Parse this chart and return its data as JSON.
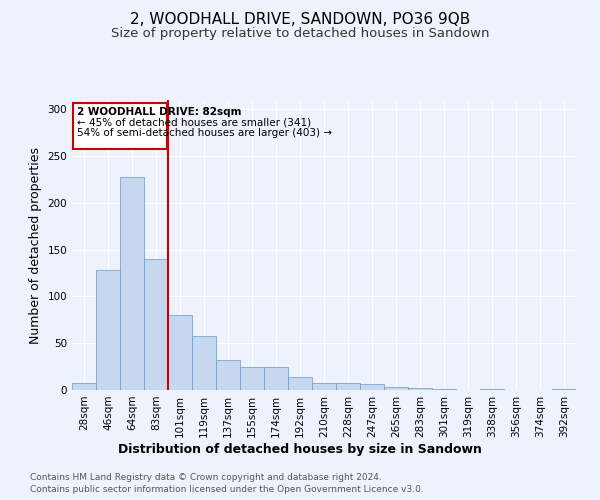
{
  "title": "2, WOODHALL DRIVE, SANDOWN, PO36 9QB",
  "subtitle": "Size of property relative to detached houses in Sandown",
  "xlabel": "Distribution of detached houses by size in Sandown",
  "ylabel": "Number of detached properties",
  "bar_labels": [
    "28sqm",
    "46sqm",
    "64sqm",
    "83sqm",
    "101sqm",
    "119sqm",
    "137sqm",
    "155sqm",
    "174sqm",
    "192sqm",
    "210sqm",
    "228sqm",
    "247sqm",
    "265sqm",
    "283sqm",
    "301sqm",
    "319sqm",
    "338sqm",
    "356sqm",
    "374sqm",
    "392sqm"
  ],
  "bar_values": [
    7,
    128,
    228,
    140,
    80,
    58,
    32,
    25,
    25,
    14,
    8,
    8,
    6,
    3,
    2,
    1,
    0,
    1,
    0,
    0,
    1
  ],
  "bar_color": "#c5d8f0",
  "bar_edge_color": "#6699cc",
  "ylim": [
    0,
    310
  ],
  "yticks": [
    0,
    50,
    100,
    150,
    200,
    250,
    300
  ],
  "marker_label_index": 3,
  "marker_color": "#cc0000",
  "annotation_title": "2 WOODHALL DRIVE: 82sqm",
  "annotation_line1": "← 45% of detached houses are smaller (341)",
  "annotation_line2": "54% of semi-detached houses are larger (403) →",
  "annotation_box_color": "#cc0000",
  "footer_line1": "Contains HM Land Registry data © Crown copyright and database right 2024.",
  "footer_line2": "Contains public sector information licensed under the Open Government Licence v3.0.",
  "background_color": "#eef2fc",
  "grid_color": "#ffffff",
  "title_fontsize": 11,
  "subtitle_fontsize": 9.5,
  "axis_label_fontsize": 9,
  "tick_fontsize": 7.5,
  "footer_fontsize": 6.5
}
